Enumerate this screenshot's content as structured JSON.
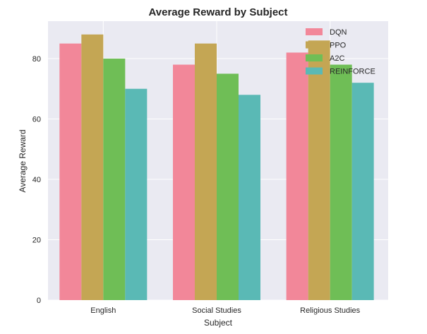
{
  "chart_data": {
    "type": "bar",
    "title": "Average Reward by Subject",
    "xlabel": "Subject",
    "ylabel": "Average Reward",
    "categories": [
      "English",
      "Social Studies",
      "Religious Studies"
    ],
    "series": [
      {
        "name": "DQN",
        "values": [
          85,
          78,
          82
        ],
        "color": "#f28799"
      },
      {
        "name": "PPO",
        "values": [
          88,
          85,
          86
        ],
        "color": "#c4a654"
      },
      {
        "name": "A2C",
        "values": [
          80,
          75,
          78
        ],
        "color": "#6fbe56"
      },
      {
        "name": "REINFORCE",
        "values": [
          70,
          68,
          72
        ],
        "color": "#5ab9b5"
      }
    ],
    "ylim": [
      0,
      92.4
    ],
    "yticks": [
      0,
      20,
      40,
      60,
      80
    ],
    "grid": true,
    "legend_position": "top-right",
    "background_color": "#eaeaf2"
  }
}
